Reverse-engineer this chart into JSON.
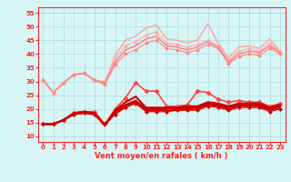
{
  "x": [
    0,
    1,
    2,
    3,
    4,
    5,
    6,
    7,
    8,
    9,
    10,
    11,
    12,
    13,
    14,
    15,
    16,
    17,
    18,
    19,
    20,
    21,
    22,
    23
  ],
  "series": [
    {
      "y": [
        30.5,
        26.0,
        29.5,
        32.5,
        33.0,
        30.5,
        29.0,
        39.5,
        45.0,
        46.5,
        49.5,
        50.5,
        45.5,
        45.0,
        44.0,
        45.0,
        51.0,
        44.0,
        38.5,
        42.5,
        43.0,
        42.0,
        45.5,
        41.0
      ],
      "color": "#ffaaaa",
      "marker": null,
      "lw": 1.2,
      "ms": 0
    },
    {
      "y": [
        30.5,
        26.0,
        29.5,
        32.5,
        33.0,
        30.5,
        30.0,
        38.0,
        43.0,
        44.5,
        47.0,
        48.0,
        44.0,
        43.5,
        42.5,
        43.5,
        45.0,
        43.0,
        37.5,
        41.0,
        42.0,
        41.0,
        44.0,
        41.0
      ],
      "color": "#ffaaaa",
      "marker": "^",
      "lw": 0.8,
      "ms": 2.5
    },
    {
      "y": [
        30.5,
        26.0,
        29.5,
        32.5,
        33.0,
        30.5,
        29.5,
        37.0,
        41.5,
        43.0,
        45.5,
        46.5,
        43.0,
        42.5,
        41.5,
        42.5,
        44.5,
        42.5,
        37.0,
        40.0,
        41.0,
        40.5,
        43.0,
        40.5
      ],
      "color": "#ff8888",
      "marker": null,
      "lw": 1.2,
      "ms": 0
    },
    {
      "y": [
        30.5,
        26.0,
        29.5,
        32.5,
        33.0,
        30.5,
        29.0,
        36.0,
        40.0,
        41.5,
        44.0,
        45.0,
        42.0,
        41.5,
        40.5,
        41.5,
        43.5,
        42.0,
        36.5,
        39.0,
        40.0,
        39.5,
        42.0,
        40.0
      ],
      "color": "#ff8888",
      "marker": "D",
      "lw": 0.8,
      "ms": 2.0
    },
    {
      "y": [
        14.5,
        14.5,
        16.0,
        18.5,
        19.0,
        19.0,
        14.5,
        20.0,
        24.0,
        29.5,
        26.5,
        26.5,
        21.0,
        21.0,
        21.5,
        26.5,
        26.0,
        23.5,
        22.5,
        23.0,
        22.5,
        22.5,
        21.0,
        22.0
      ],
      "color": "#ff4444",
      "marker": "D",
      "lw": 1.2,
      "ms": 2.5
    },
    {
      "y": [
        14.5,
        14.5,
        16.0,
        18.5,
        19.0,
        18.5,
        14.0,
        19.5,
        22.5,
        24.5,
        20.5,
        20.5,
        20.5,
        20.5,
        21.0,
        21.0,
        22.5,
        22.0,
        21.0,
        22.0,
        22.0,
        22.0,
        20.5,
        21.5
      ],
      "color": "#cc0000",
      "marker": null,
      "lw": 1.5,
      "ms": 0
    },
    {
      "y": [
        14.5,
        14.5,
        16.0,
        18.5,
        19.0,
        18.5,
        14.0,
        19.0,
        21.5,
        23.0,
        20.0,
        20.0,
        20.0,
        20.0,
        20.5,
        20.5,
        22.0,
        21.5,
        20.5,
        21.5,
        21.5,
        21.5,
        20.0,
        21.0
      ],
      "color": "#cc0000",
      "marker": null,
      "lw": 1.5,
      "ms": 0
    },
    {
      "y": [
        14.5,
        14.5,
        16.0,
        18.0,
        18.5,
        18.0,
        14.0,
        18.5,
        21.0,
        22.5,
        19.5,
        19.5,
        19.5,
        19.5,
        20.0,
        20.0,
        21.5,
        21.0,
        20.0,
        21.0,
        21.0,
        21.0,
        19.5,
        20.5
      ],
      "color": "#cc0000",
      "marker": null,
      "lw": 1.2,
      "ms": 0
    },
    {
      "y": [
        14.5,
        14.5,
        16.0,
        18.0,
        18.5,
        18.0,
        14.5,
        18.0,
        20.5,
        22.0,
        19.0,
        19.0,
        19.0,
        19.5,
        19.5,
        19.5,
        21.0,
        20.5,
        19.5,
        20.5,
        20.5,
        20.5,
        19.0,
        20.0
      ],
      "color": "#cc0000",
      "marker": "D",
      "lw": 0.8,
      "ms": 2.0
    }
  ],
  "xlabel": "Vent moyen/en rafales ( km/h )",
  "ylim": [
    8,
    57
  ],
  "xlim": [
    -0.5,
    23.5
  ],
  "yticks": [
    10,
    15,
    20,
    25,
    30,
    35,
    40,
    45,
    50,
    55
  ],
  "xticks": [
    0,
    1,
    2,
    3,
    4,
    5,
    6,
    7,
    8,
    9,
    10,
    11,
    12,
    13,
    14,
    15,
    16,
    17,
    18,
    19,
    20,
    21,
    22,
    23
  ],
  "bg_color": "#d8f5f5",
  "grid_color": "#aadddd",
  "tick_color": "#ff2222",
  "label_color": "#ff2222",
  "axis_color": "#ff2222",
  "arrow_color": "#dd2222"
}
